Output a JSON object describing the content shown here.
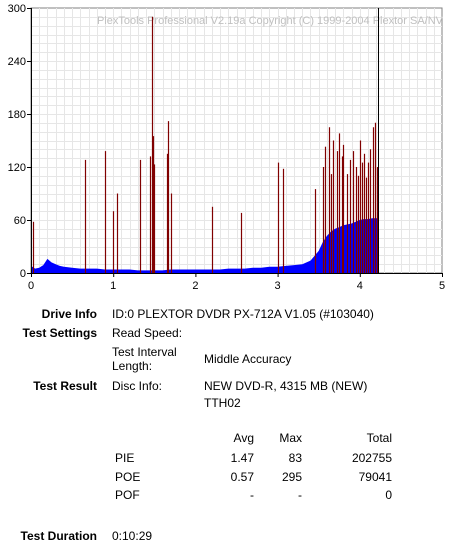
{
  "chart_data": {
    "type": "bar",
    "watermark": "PlexTools Professional V2.19a Copyright (C) 1999-2004 Plextor SA/NV",
    "xlim": [
      0,
      5
    ],
    "ylim": [
      0,
      300
    ],
    "x_ticks": [
      "0",
      "1",
      "2",
      "3",
      "4",
      "5"
    ],
    "y_ticks": [
      "0",
      "60",
      "120",
      "180",
      "240",
      "300"
    ],
    "grid": true,
    "end_marker_x": 4.22,
    "series": [
      {
        "name": "",
        "color": "#0000ff",
        "points": [
          [
            0.0,
            8
          ],
          [
            0.05,
            5
          ],
          [
            0.1,
            6
          ],
          [
            0.15,
            9
          ],
          [
            0.2,
            16
          ],
          [
            0.25,
            12
          ],
          [
            0.3,
            10
          ],
          [
            0.35,
            8
          ],
          [
            0.4,
            7
          ],
          [
            0.5,
            6
          ],
          [
            0.6,
            5
          ],
          [
            0.7,
            5
          ],
          [
            0.8,
            5
          ],
          [
            0.9,
            4
          ],
          [
            1.0,
            4
          ],
          [
            1.1,
            4
          ],
          [
            1.2,
            4
          ],
          [
            1.3,
            3
          ],
          [
            1.4,
            3
          ],
          [
            1.5,
            3
          ],
          [
            1.6,
            3
          ],
          [
            1.7,
            4
          ],
          [
            1.8,
            4
          ],
          [
            1.9,
            4
          ],
          [
            2.0,
            4
          ],
          [
            2.1,
            4
          ],
          [
            2.2,
            4
          ],
          [
            2.3,
            4
          ],
          [
            2.4,
            5
          ],
          [
            2.5,
            5
          ],
          [
            2.6,
            5
          ],
          [
            2.7,
            6
          ],
          [
            2.8,
            6
          ],
          [
            2.9,
            7
          ],
          [
            3.0,
            7
          ],
          [
            3.1,
            8
          ],
          [
            3.2,
            9
          ],
          [
            3.3,
            10
          ],
          [
            3.4,
            14
          ],
          [
            3.5,
            25
          ],
          [
            3.55,
            35
          ],
          [
            3.6,
            42
          ],
          [
            3.65,
            47
          ],
          [
            3.7,
            50
          ],
          [
            3.75,
            52
          ],
          [
            3.8,
            54
          ],
          [
            3.85,
            55
          ],
          [
            3.9,
            56
          ],
          [
            3.95,
            58
          ],
          [
            4.0,
            60
          ],
          [
            4.05,
            61
          ],
          [
            4.1,
            61
          ],
          [
            4.15,
            62
          ],
          [
            4.22,
            62
          ]
        ]
      },
      {
        "name": "",
        "color": "#800000",
        "spikes": [
          [
            0.03,
            58
          ],
          [
            0.66,
            128
          ],
          [
            0.9,
            138
          ],
          [
            1.0,
            70
          ],
          [
            1.05,
            90
          ],
          [
            1.32,
            128
          ],
          [
            1.45,
            132
          ],
          [
            1.47,
            290
          ],
          [
            1.48,
            155
          ],
          [
            1.5,
            123
          ],
          [
            1.65,
            135
          ],
          [
            1.67,
            172
          ],
          [
            1.7,
            90
          ],
          [
            2.2,
            75
          ],
          [
            2.55,
            68
          ],
          [
            3.0,
            125
          ],
          [
            3.07,
            118
          ],
          [
            3.45,
            95
          ],
          [
            3.55,
            120
          ],
          [
            3.58,
            143
          ],
          [
            3.62,
            165
          ],
          [
            3.65,
            112
          ],
          [
            3.68,
            150
          ],
          [
            3.72,
            138
          ],
          [
            3.75,
            158
          ],
          [
            3.78,
            132
          ],
          [
            3.8,
            145
          ],
          [
            3.85,
            112
          ],
          [
            3.88,
            128
          ],
          [
            3.92,
            138
          ],
          [
            3.95,
            120
          ],
          [
            3.98,
            110
          ],
          [
            4.0,
            150
          ],
          [
            4.03,
            125
          ],
          [
            4.05,
            135
          ],
          [
            4.08,
            108
          ],
          [
            4.1,
            125
          ],
          [
            4.13,
            140
          ],
          [
            4.16,
            165
          ],
          [
            4.18,
            170
          ],
          [
            4.21,
            120
          ]
        ]
      }
    ]
  },
  "info": {
    "drive_info_label": "Drive Info",
    "drive_info_value": "ID:0 PLEXTOR DVDR PX-712A V1.05 (#103040)",
    "test_settings_label": "Test Settings",
    "read_speed_label": "Read Speed:",
    "read_speed_value": "",
    "interval_label_1": "Test Interval",
    "interval_label_2": "Length:",
    "interval_value": "Middle Accuracy",
    "test_result_label": "Test Result",
    "disc_info_label": "Disc Info:",
    "disc_info_value_1": "NEW DVD-R, 4315 MB (NEW)",
    "disc_info_value_2": "TTH02",
    "table": {
      "headers": [
        "Avg",
        "Max",
        "Total"
      ],
      "rows": [
        {
          "name": "PIE",
          "avg": "1.47",
          "max": "83",
          "total": "202755"
        },
        {
          "name": "POE",
          "avg": "0.57",
          "max": "295",
          "total": "79041"
        },
        {
          "name": "POF",
          "avg": "-",
          "max": "-",
          "total": "0"
        }
      ]
    },
    "duration_label": "Test Duration",
    "duration_value": "0:10:29"
  }
}
